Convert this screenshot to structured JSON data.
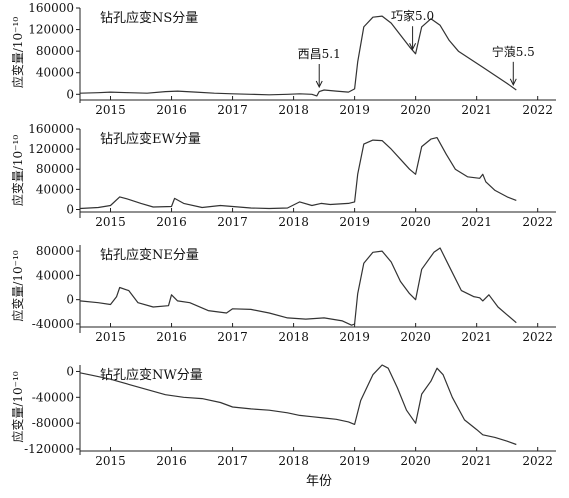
{
  "figure": {
    "xlabel": "年份"
  },
  "chart_data": [
    {
      "type": "line",
      "title": "钻孔应变NS分量",
      "ylabel": "应变量/10⁻¹⁰",
      "ylim": [
        -5000,
        160000
      ],
      "yticks": [
        0,
        40000,
        80000,
        120000,
        160000
      ],
      "xlim": [
        2014.5,
        2022.3
      ],
      "xticks": [
        2015,
        2016,
        2017,
        2018,
        2019,
        2020,
        2021,
        2022
      ],
      "annotations": [
        {
          "text": "西昌5.1",
          "x": 2018.42,
          "y": 8000
        },
        {
          "text": "巧家5.0",
          "x": 2019.95,
          "y": 78000
        },
        {
          "text": "宁蒗5.5",
          "x": 2021.6,
          "y": 12000
        }
      ],
      "series": [
        {
          "x": [
            2014.5,
            2014.8,
            2015.0,
            2015.3,
            2015.6,
            2015.9,
            2016.1,
            2016.4,
            2016.7,
            2017.0,
            2017.3,
            2017.6,
            2017.9,
            2018.1,
            2018.3,
            2018.38,
            2018.42,
            2018.5,
            2018.7,
            2018.9,
            2019.0,
            2019.05,
            2019.15,
            2019.3,
            2019.45,
            2019.6,
            2019.75,
            2019.9,
            2020.0,
            2020.1,
            2020.25,
            2020.4,
            2020.55,
            2020.7,
            2020.9,
            2021.1,
            2021.3,
            2021.5,
            2021.65
          ],
          "y": [
            2000,
            3000,
            4000,
            3000,
            2000,
            5000,
            6000,
            4000,
            2000,
            1000,
            0,
            -1000,
            0,
            1000,
            0,
            -3000,
            5000,
            8000,
            6000,
            4000,
            10000,
            60000,
            125000,
            143000,
            145000,
            132000,
            110000,
            88000,
            75000,
            125000,
            140000,
            128000,
            100000,
            80000,
            65000,
            50000,
            35000,
            20000,
            8000
          ]
        }
      ]
    },
    {
      "type": "line",
      "title": "钻孔应变EW分量",
      "ylabel": "应变量/10⁻¹⁰",
      "ylim": [
        -5000,
        160000
      ],
      "yticks": [
        0,
        40000,
        80000,
        120000,
        160000
      ],
      "xlim": [
        2014.5,
        2022.3
      ],
      "xticks": [
        2015,
        2016,
        2017,
        2018,
        2019,
        2020,
        2021,
        2022
      ],
      "series": [
        {
          "x": [
            2014.5,
            2014.8,
            2015.0,
            2015.15,
            2015.3,
            2015.5,
            2015.7,
            2016.0,
            2016.05,
            2016.2,
            2016.5,
            2016.8,
            2017.0,
            2017.3,
            2017.6,
            2017.9,
            2018.1,
            2018.3,
            2018.45,
            2018.6,
            2018.9,
            2019.0,
            2019.05,
            2019.15,
            2019.3,
            2019.45,
            2019.6,
            2019.75,
            2019.9,
            2020.0,
            2020.1,
            2020.25,
            2020.35,
            2020.5,
            2020.65,
            2020.85,
            2021.05,
            2021.1,
            2021.15,
            2021.3,
            2021.5,
            2021.65
          ],
          "y": [
            2000,
            4000,
            8000,
            25000,
            20000,
            12000,
            5000,
            6000,
            22000,
            12000,
            4000,
            8000,
            6000,
            3000,
            2000,
            3000,
            15000,
            8000,
            12000,
            10000,
            12000,
            15000,
            70000,
            130000,
            138000,
            137000,
            120000,
            100000,
            80000,
            70000,
            125000,
            140000,
            143000,
            110000,
            80000,
            65000,
            62000,
            70000,
            55000,
            38000,
            25000,
            18000
          ]
        }
      ]
    },
    {
      "type": "line",
      "title": "钻孔应变NE分量",
      "ylabel": "应变量/10⁻¹⁰",
      "ylim": [
        -45000,
        90000
      ],
      "yticks": [
        -40000,
        0,
        40000,
        80000
      ],
      "xlim": [
        2014.5,
        2022.3
      ],
      "xticks": [
        2015,
        2016,
        2017,
        2018,
        2019,
        2020,
        2021,
        2022
      ],
      "series": [
        {
          "x": [
            2014.5,
            2014.8,
            2015.0,
            2015.1,
            2015.15,
            2015.3,
            2015.45,
            2015.7,
            2015.95,
            2016.0,
            2016.1,
            2016.3,
            2016.6,
            2016.9,
            2017.0,
            2017.3,
            2017.6,
            2017.9,
            2018.2,
            2018.5,
            2018.8,
            2018.95,
            2019.0,
            2019.05,
            2019.15,
            2019.3,
            2019.45,
            2019.6,
            2019.75,
            2019.9,
            2020.0,
            2020.1,
            2020.3,
            2020.4,
            2020.55,
            2020.75,
            2020.95,
            2021.0,
            2021.05,
            2021.1,
            2021.2,
            2021.35,
            2021.5,
            2021.65
          ],
          "y": [
            -2000,
            -5000,
            -8000,
            5000,
            20000,
            15000,
            -5000,
            -12000,
            -10000,
            8000,
            -2000,
            -5000,
            -18000,
            -22000,
            -15000,
            -16000,
            -22000,
            -30000,
            -32000,
            -30000,
            -35000,
            -42000,
            -40000,
            10000,
            60000,
            78000,
            80000,
            62000,
            30000,
            10000,
            0,
            50000,
            78000,
            85000,
            55000,
            15000,
            5000,
            4000,
            3000,
            -2000,
            8000,
            -12000,
            -25000,
            -38000
          ]
        }
      ]
    },
    {
      "type": "line",
      "title": "钻孔应变NW分量",
      "ylabel": "应变量/10⁻¹⁰",
      "ylim": [
        -120000,
        10000
      ],
      "yticks": [
        -120000,
        -80000,
        -40000,
        0
      ],
      "xlim": [
        2014.5,
        2022.3
      ],
      "xticks": [
        2015,
        2016,
        2017,
        2018,
        2019,
        2020,
        2021,
        2022
      ],
      "series": [
        {
          "x": [
            2014.5,
            2014.7,
            2015.0,
            2015.3,
            2015.6,
            2015.9,
            2016.2,
            2016.5,
            2016.8,
            2017.0,
            2017.3,
            2017.6,
            2017.9,
            2018.1,
            2018.3,
            2018.5,
            2018.7,
            2018.9,
            2019.0,
            2019.1,
            2019.3,
            2019.45,
            2019.55,
            2019.7,
            2019.85,
            2020.0,
            2020.1,
            2020.25,
            2020.35,
            2020.45,
            2020.6,
            2020.8,
            2021.0,
            2021.1,
            2021.3,
            2021.5,
            2021.65
          ],
          "y": [
            -2000,
            -6000,
            -12000,
            -20000,
            -28000,
            -36000,
            -40000,
            -42000,
            -48000,
            -55000,
            -58000,
            -60000,
            -64000,
            -68000,
            -70000,
            -72000,
            -74000,
            -78000,
            -82000,
            -45000,
            -5000,
            10000,
            5000,
            -25000,
            -60000,
            -80000,
            -35000,
            -15000,
            5000,
            -5000,
            -40000,
            -75000,
            -90000,
            -98000,
            -102000,
            -108000,
            -113000
          ]
        }
      ]
    }
  ]
}
